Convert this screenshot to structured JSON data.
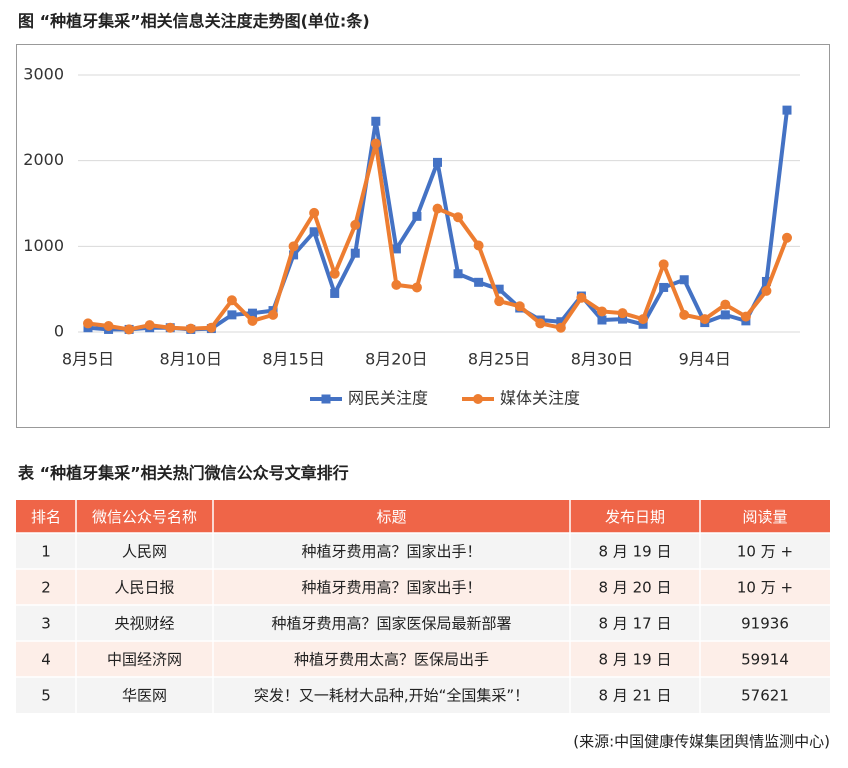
{
  "figure_caption": "图 “种植牙集采”相关信息关注度走势图(单位:条)",
  "chart_data": {
    "type": "line",
    "categories": [
      "8月5日",
      null,
      null,
      null,
      null,
      "8月10日",
      null,
      null,
      null,
      null,
      "8月15日",
      null,
      null,
      null,
      null,
      "8月20日",
      null,
      null,
      null,
      null,
      "8月25日",
      null,
      null,
      null,
      null,
      "8月30日",
      null,
      null,
      null,
      null,
      "9月4日",
      null,
      null,
      null,
      null
    ],
    "series": [
      {
        "name": "网民关注度",
        "color": "#4472c4",
        "marker": "square",
        "values": [
          50,
          30,
          30,
          50,
          50,
          30,
          40,
          200,
          220,
          250,
          900,
          1170,
          450,
          920,
          2460,
          970,
          1350,
          1980,
          680,
          580,
          500,
          280,
          140,
          120,
          420,
          140,
          150,
          90,
          520,
          610,
          110,
          200,
          130,
          590,
          2590
        ]
      },
      {
        "name": "媒体关注度",
        "color": "#ed7d31",
        "marker": "circle",
        "values": [
          100,
          70,
          30,
          80,
          50,
          40,
          50,
          370,
          130,
          200,
          1000,
          1390,
          680,
          1250,
          2200,
          550,
          520,
          1440,
          1340,
          1010,
          360,
          300,
          100,
          50,
          400,
          240,
          220,
          150,
          790,
          200,
          150,
          320,
          180,
          480,
          1100
        ]
      }
    ],
    "ylim": [
      0,
      3000
    ],
    "yticks": [
      0,
      1000,
      2000,
      3000
    ],
    "grid": true,
    "legend": "bottom"
  },
  "table": {
    "caption": "表 “种植牙集采”相关热门微信公众号文章排行",
    "header": [
      "排名",
      "微信公众号名称",
      "标题",
      "发布日期",
      "阅读量"
    ],
    "rows": [
      [
        "1",
        "人民网",
        "种植牙费用高？国家出手！",
        "8 月 19 日",
        "10 万 +"
      ],
      [
        "2",
        "人民日报",
        "种植牙费用高？国家出手！",
        "8 月 20 日",
        "10 万 +"
      ],
      [
        "3",
        "央视财经",
        "种植牙费用高？国家医保局最新部署",
        "8 月 17 日",
        "91936"
      ],
      [
        "4",
        "中国经济网",
        "种植牙费用太高？医保局出手",
        "8 月 19 日",
        "59914"
      ],
      [
        "5",
        "华医网",
        "突发！又一耗材大品种,开始“全国集采”！",
        "8 月 21 日",
        "57621"
      ]
    ]
  },
  "source": "(来源:中国健康传媒集团舆情监测中心)"
}
